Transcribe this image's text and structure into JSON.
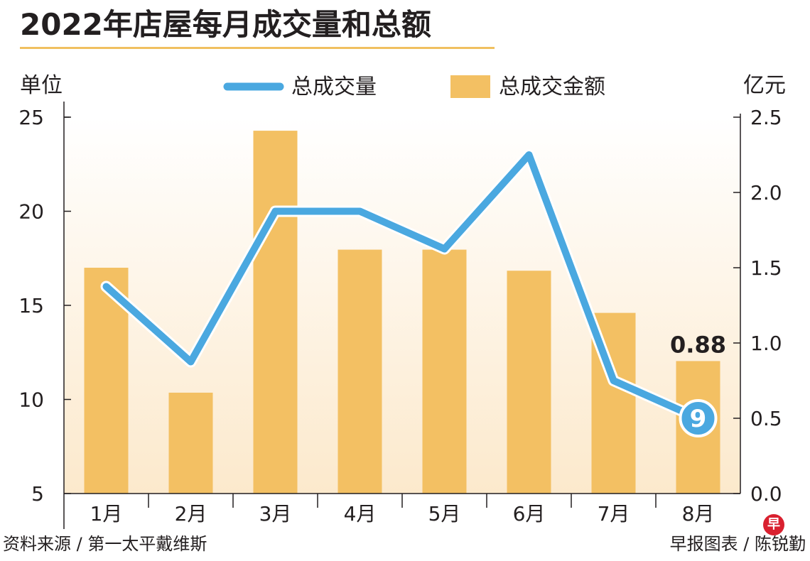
{
  "header": {
    "title": "2022年店屋每月成交量和总额",
    "source": "资料来源 / 第一太平戴维斯",
    "credit": "早报图表 / 陈锐勤",
    "logo_text": "早"
  },
  "chart_data": {
    "type": "bar",
    "categories": [
      "1月",
      "2月",
      "3月",
      "4月",
      "5月",
      "6月",
      "7月",
      "8月"
    ],
    "series": [
      {
        "name": "总成交金额",
        "kind": "bar",
        "axis": "right",
        "values": [
          1.5,
          0.67,
          2.41,
          1.62,
          1.62,
          1.48,
          1.2,
          0.88
        ],
        "color": "#f3c063"
      },
      {
        "name": "总成交量",
        "kind": "line",
        "axis": "left",
        "values": [
          16,
          12,
          20,
          20,
          18,
          23,
          11,
          9
        ],
        "color": "#4aa8e0"
      }
    ],
    "ylabel_left": "单位",
    "ylabel_right": "亿元",
    "ylim_left": [
      5,
      25
    ],
    "ylim_right": [
      0,
      2.5
    ],
    "yticks_left": [
      "5",
      "10",
      "15",
      "20",
      "25"
    ],
    "yticks_right": [
      "0.0",
      "0.5",
      "1.0",
      "1.5",
      "2.0",
      "2.5"
    ],
    "annotations": {
      "bar_last_label": "0.88",
      "line_last_label": "9"
    },
    "legend": "top-center",
    "grid": false
  }
}
